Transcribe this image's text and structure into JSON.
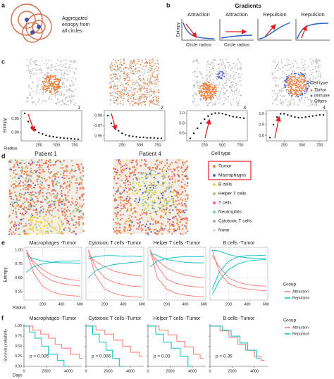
{
  "a": {
    "label": "a",
    "text": [
      "Aggregated",
      "entropy from",
      "all circles"
    ]
  },
  "b": {
    "label": "b",
    "title": "Gradients",
    "panels": [
      "Attraction",
      "Attraction",
      "Repulsion",
      "Repulsion"
    ],
    "y_label": "Entropy",
    "x_labels": [
      "Circle radius",
      "Circle radius"
    ]
  },
  "c": {
    "label": "c",
    "y_label": "Entropy",
    "x_label": "Radius",
    "radius": [
      50,
      100,
      150,
      200,
      250,
      300,
      350,
      400,
      450,
      500,
      550,
      600,
      650,
      700,
      750,
      800
    ],
    "xlim": [
      0,
      850
    ],
    "xticks": [
      250,
      500,
      750
    ],
    "plots": [
      {
        "number": 1,
        "ylim": [
          0.77,
          0.88
        ],
        "yticks": [
          {
            "value": 0.8,
            "label": "0.80"
          },
          0.85
        ],
        "values": [
          0.87,
          0.84,
          0.82,
          0.81,
          0.8,
          0.795,
          0.79,
          0.787,
          0.785,
          0.783,
          0.781,
          0.78,
          0.779,
          0.778,
          0.777,
          0.776
        ]
      },
      {
        "number": 2,
        "ylim": [
          0.94,
          1.0
        ],
        "yticks": [
          0.95,
          0.97,
          0.99
        ],
        "values": [
          0.99,
          0.975,
          0.965,
          0.96,
          0.955,
          0.952,
          0.95,
          0.949,
          0.948,
          0.947,
          0.947,
          0.946,
          0.946,
          0.946,
          0.945,
          0.945
        ]
      },
      {
        "number": 3,
        "ylim": [
          0.45,
          1.05
        ],
        "yticks": [
          0.6,
          0.8,
          {
            "value": 1,
            "label": "1.0"
          }
        ],
        "values": [
          0.5,
          0.6,
          0.7,
          0.8,
          0.88,
          0.94,
          0.98,
          1.0,
          1.0,
          0.99,
          0.97,
          0.95,
          0.93,
          0.92,
          0.91,
          0.9
        ]
      },
      {
        "number": 4,
        "ylim": [
          0.75,
          1.03
        ],
        "yticks": [
          0.8,
          0.9,
          {
            "value": 1,
            "label": "1.0"
          }
        ],
        "values": [
          0.78,
          0.9,
          0.97,
          1.0,
          1.0,
          0.99,
          0.98,
          0.97,
          0.965,
          0.965,
          0.97,
          0.975,
          0.98,
          0.985,
          0.99,
          0.99
        ]
      }
    ],
    "legend": {
      "title": "Cell type",
      "items": [
        {
          "name": "Tumor",
          "color": "#ef7f3c"
        },
        {
          "name": "Immune",
          "color": "#5566c9"
        },
        {
          "name": "Others",
          "color": "#bdbdbd"
        }
      ]
    }
  },
  "d": {
    "label": "d",
    "patients": [
      "Patient 1",
      "Patient 4"
    ],
    "legend": {
      "title": "Cell type",
      "items": [
        {
          "name": "Tumor",
          "color": "#ef7f4f"
        },
        {
          "name": "Macrophages",
          "color": "#5566c9"
        },
        {
          "name": "B cells",
          "color": "#f3d34a"
        },
        {
          "name": "Helper T cells",
          "color": "#9bcf79"
        },
        {
          "name": "T cells",
          "color": "#e85a8a"
        },
        {
          "name": "Neutrophils",
          "color": "#7fc9a8"
        },
        {
          "name": "Cytotoxic T cells",
          "color": "#a9a9a9"
        },
        {
          "name": "None",
          "color": "#dcdcdc"
        }
      ]
    }
  },
  "e": {
    "label": "e",
    "y_label": "Entropy",
    "x_label": "Radius",
    "x": [
      25,
      100,
      200,
      300,
      400,
      500,
      600
    ],
    "xlim": [
      0,
      620
    ],
    "xticks": [
      200,
      400,
      600
    ],
    "ylim": [
      0.1,
      1.05
    ],
    "yticks": [
      0.25,
      {
        "value": 0.5,
        "label": "0.50"
      },
      0.75,
      {
        "value": 1,
        "label": "1.00"
      }
    ],
    "panels": [
      {
        "title": "Macrophages -Tumor",
        "attraction": [
          [
            1.0,
            0.75,
            0.55,
            0.45,
            0.4,
            0.37,
            0.35
          ],
          [
            0.95,
            0.8,
            0.65,
            0.55,
            0.5,
            0.47,
            0.45
          ],
          [
            1.0,
            0.6,
            0.35,
            0.25,
            0.2,
            0.18,
            0.17
          ]
        ],
        "repulsion": [
          [
            0.6,
            0.7,
            0.75,
            0.78,
            0.8,
            0.8,
            0.81
          ],
          [
            0.9,
            0.85,
            0.8,
            0.78,
            0.77,
            0.77,
            0.76
          ]
        ]
      },
      {
        "title": "Cytotoxic T cells -Tumor",
        "attraction": [
          [
            1.0,
            0.7,
            0.5,
            0.42,
            0.38,
            0.35,
            0.34
          ],
          [
            0.9,
            0.8,
            0.7,
            0.62,
            0.58,
            0.55,
            0.53
          ],
          [
            1.0,
            0.55,
            0.3,
            0.22,
            0.18,
            0.16,
            0.15
          ]
        ],
        "repulsion": [
          [
            0.85,
            0.88,
            0.9,
            0.9,
            0.89,
            0.89,
            0.88
          ],
          [
            0.5,
            0.62,
            0.7,
            0.74,
            0.76,
            0.78,
            0.79
          ]
        ]
      },
      {
        "title": "Helper T cells -Tumor",
        "attraction": [
          [
            1.0,
            0.72,
            0.48,
            0.4,
            0.36,
            0.34,
            0.33
          ],
          [
            0.92,
            0.82,
            0.68,
            0.6,
            0.55,
            0.52,
            0.5
          ],
          [
            1.0,
            0.5,
            0.3,
            0.22,
            0.19,
            0.17,
            0.16
          ]
        ],
        "repulsion": [
          [
            0.7,
            0.8,
            0.85,
            0.87,
            0.88,
            0.88,
            0.88
          ],
          [
            0.95,
            0.9,
            0.83,
            0.8,
            0.78,
            0.77,
            0.77
          ]
        ]
      },
      {
        "title": "B cells -Tumor",
        "attraction": [
          [
            1.0,
            0.6,
            0.4,
            0.33,
            0.3,
            0.28,
            0.27
          ],
          [
            0.9,
            0.7,
            0.5,
            0.42,
            0.38,
            0.36,
            0.35
          ]
        ],
        "repulsion": [
          [
            0.2,
            0.45,
            0.65,
            0.75,
            0.8,
            0.82,
            0.83
          ],
          [
            0.3,
            0.6,
            0.8,
            0.88,
            0.9,
            0.9,
            0.91
          ],
          [
            1.0,
            0.98,
            0.92,
            0.88,
            0.86,
            0.85,
            0.85
          ]
        ]
      }
    ],
    "legend": {
      "title": "Group",
      "items": [
        {
          "name": "Attraction",
          "color": "#f8766d"
        },
        {
          "name": "Repulsion",
          "color": "#00bfc4"
        }
      ]
    }
  },
  "f": {
    "label": "f",
    "y_label": "Survival probability",
    "x_label": "Days",
    "xlim": [
      0,
      5200
    ],
    "xticks": [
      0,
      2000,
      4000
    ],
    "ylim": [
      0,
      1.05
    ],
    "yticks": [
      {
        "value": 0,
        "label": "0.00"
      },
      0.25,
      {
        "value": 0.5,
        "label": "0.50"
      },
      0.75,
      {
        "value": 1,
        "label": "1.00"
      }
    ],
    "panels": [
      {
        "title": "Macrophages -Tumor",
        "p": "p = 0.005",
        "attraction": {
          "times": [
            0,
            800,
            1500,
            2200,
            2800,
            3400,
            4200,
            5000
          ],
          "surv": [
            1,
            0.9,
            0.8,
            0.7,
            0.55,
            0.45,
            0.3,
            0.2
          ]
        },
        "repulsion": {
          "times": [
            0,
            500,
            1000,
            1600,
            2200,
            3000,
            3600
          ],
          "surv": [
            1,
            0.85,
            0.7,
            0.5,
            0.3,
            0.15,
            0
          ]
        }
      },
      {
        "title": "Cytotoxic T cells -Tumor",
        "p": "p = 0.006",
        "attraction": {
          "times": [
            0,
            900,
            1700,
            2500,
            3300,
            4000,
            4800
          ],
          "surv": [
            1,
            0.9,
            0.8,
            0.65,
            0.5,
            0.35,
            0.25
          ]
        },
        "repulsion": {
          "times": [
            0,
            600,
            1200,
            1800,
            2400,
            3000
          ],
          "surv": [
            1,
            0.8,
            0.6,
            0.4,
            0.2,
            0
          ]
        }
      },
      {
        "title": "Helper T cells -Tumor",
        "p": "p = 0.03",
        "attraction": {
          "times": [
            0,
            1000,
            1800,
            2600,
            3300,
            4100,
            4700
          ],
          "surv": [
            1,
            0.9,
            0.78,
            0.62,
            0.48,
            0.3,
            0.2
          ]
        },
        "repulsion": {
          "times": [
            0,
            700,
            1400,
            2100,
            2900,
            3600
          ],
          "surv": [
            1,
            0.8,
            0.6,
            0.45,
            0.25,
            0
          ]
        }
      },
      {
        "title": "B cells -Tumor",
        "p": "p = 0.35",
        "attraction": {
          "times": [
            0,
            900,
            1700,
            2500,
            3200,
            4000,
            4600
          ],
          "surv": [
            1,
            0.88,
            0.72,
            0.55,
            0.4,
            0.25,
            0.15
          ]
        },
        "repulsion": {
          "times": [
            0,
            1100,
            1900,
            2700,
            3400,
            4200
          ],
          "surv": [
            1,
            0.9,
            0.75,
            0.58,
            0.4,
            0.2
          ]
        }
      }
    ],
    "legend": {
      "title": "Group",
      "items": [
        {
          "name": "Attraction",
          "color": "#f8766d"
        },
        {
          "name": "Repulsion",
          "color": "#00bfc4"
        }
      ]
    }
  }
}
